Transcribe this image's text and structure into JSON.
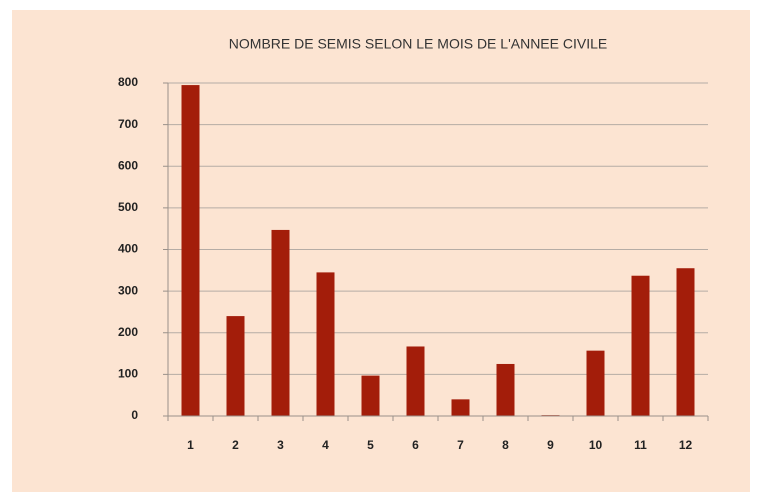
{
  "chart_data": {
    "type": "bar",
    "title": "NOMBRE DE SEMIS SELON LE MOIS DE L'ANNEE CIVILE",
    "categories": [
      "1",
      "2",
      "3",
      "4",
      "5",
      "6",
      "7",
      "8",
      "9",
      "10",
      "11",
      "12"
    ],
    "values": [
      795,
      240,
      447,
      345,
      97,
      167,
      40,
      125,
      2,
      157,
      337,
      355
    ],
    "color": "#a31d0a",
    "ylim": [
      0,
      800
    ],
    "yticks": [
      0,
      100,
      200,
      300,
      400,
      500,
      600,
      700,
      800
    ],
    "grid": true
  }
}
